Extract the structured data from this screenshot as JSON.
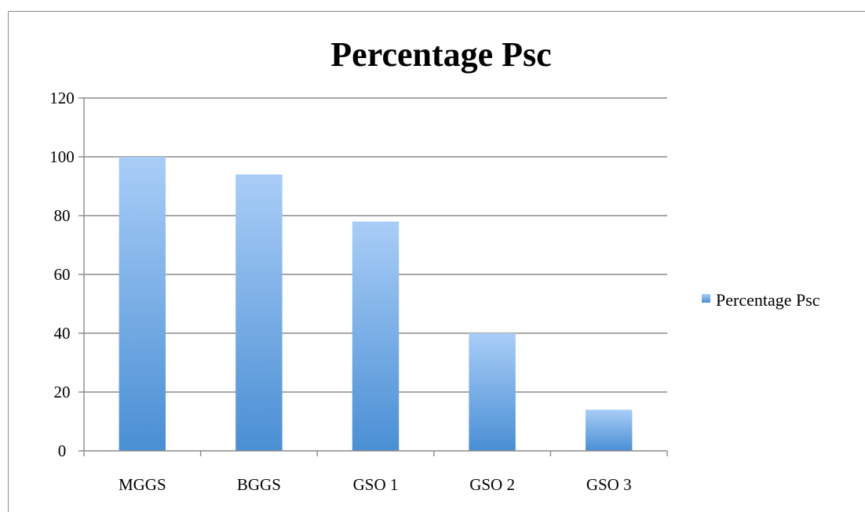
{
  "chart_data": {
    "type": "bar",
    "title": "Percentage Psc",
    "categories": [
      "MGGS",
      "BGGS",
      "GSO 1",
      "GSO 2",
      "GSO 3"
    ],
    "series": [
      {
        "name": "Percentage Psc",
        "values": [
          100,
          94,
          78,
          40,
          14
        ]
      }
    ],
    "xlabel": "",
    "ylabel": "",
    "ylim": [
      0,
      120
    ],
    "yticks": [
      "0",
      "20",
      "40",
      "60",
      "80",
      "100",
      "120"
    ],
    "grid": true,
    "legend_position": "right",
    "colors": {
      "bar_top": "#a9cdf7",
      "bar_bottom": "#4a8fd4",
      "gridline": "#8a8a8a"
    }
  }
}
